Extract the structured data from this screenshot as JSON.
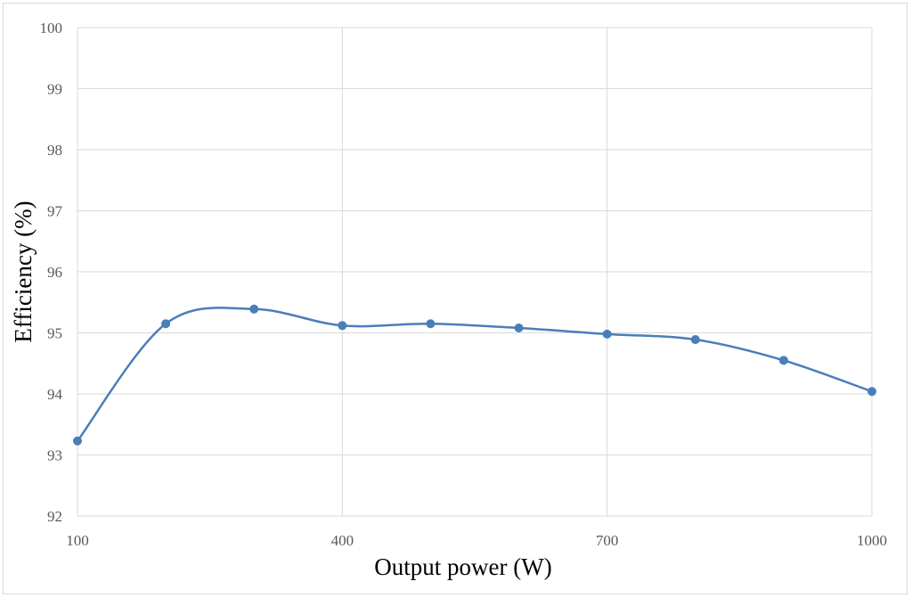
{
  "chart_data": {
    "type": "line",
    "title": "",
    "xlabel": "Output power (W)",
    "ylabel": "Efficiency (%)",
    "xlim": [
      100,
      1000
    ],
    "ylim": [
      92,
      100
    ],
    "x_ticks": [
      100,
      400,
      700,
      1000
    ],
    "y_ticks": [
      92,
      93,
      94,
      95,
      96,
      97,
      98,
      99,
      100
    ],
    "grid": true,
    "smooth": true,
    "series": [
      {
        "color": "#4a7ebb",
        "x": [
          100,
          200,
          300,
          400,
          500,
          600,
          700,
          800,
          900,
          1000
        ],
        "y": [
          93.23,
          95.15,
          95.39,
          95.12,
          95.15,
          95.08,
          94.98,
          94.89,
          94.55,
          94.04
        ]
      }
    ]
  }
}
